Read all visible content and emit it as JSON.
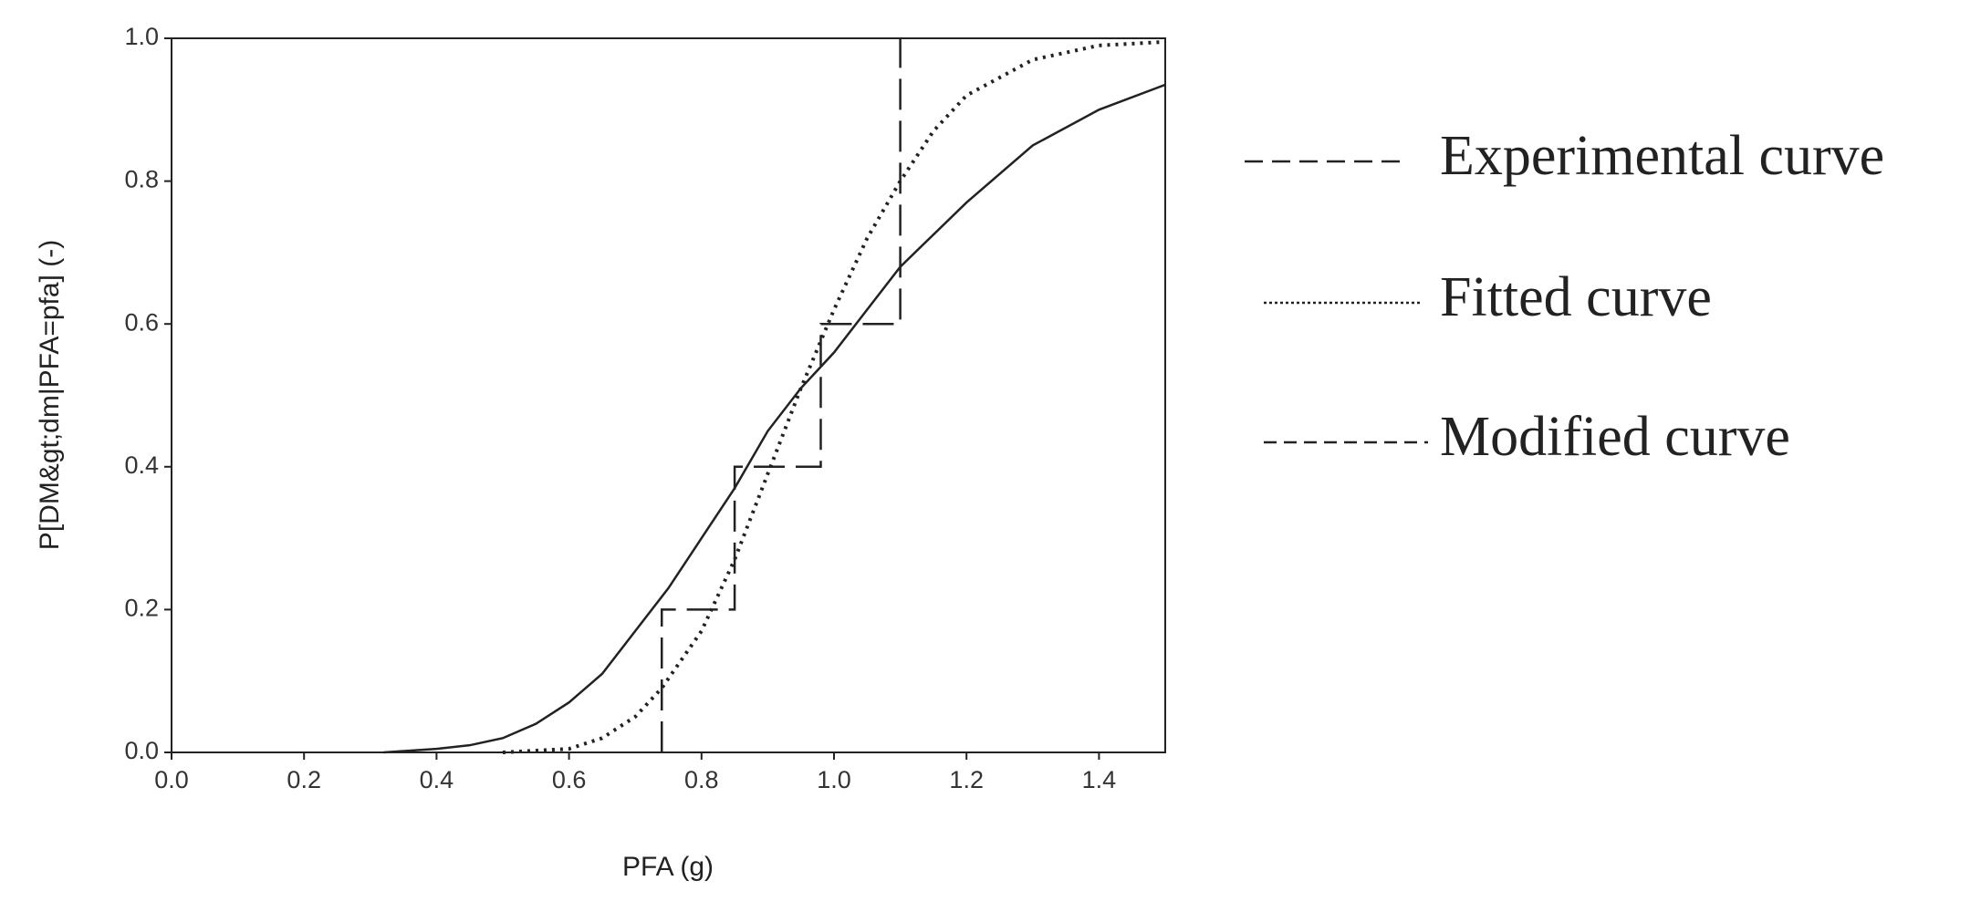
{
  "chart_data": {
    "type": "line",
    "xlabel": "PFA (g)",
    "ylabel": "P[DM&gt;dm|PFA=pfa] (-)",
    "xlim": [
      0,
      1.5
    ],
    "ylim": [
      0,
      1
    ],
    "xticks": [
      {
        "value": 0,
        "label": "0.0"
      },
      0.2,
      0.4,
      0.6,
      0.8,
      {
        "value": 1,
        "label": "1.0"
      },
      1.2,
      1.4
    ],
    "yticks": [
      {
        "value": 0,
        "label": "0.0"
      },
      0.2,
      0.4,
      0.6,
      0.8,
      {
        "value": 1,
        "label": "1.0"
      }
    ],
    "series": [
      {
        "name": "Experimental curve",
        "color": "#222222",
        "x": [
          0.74,
          0.74,
          0.85,
          0.85,
          0.98,
          0.98,
          1.1,
          1.1
        ],
        "values": [
          0,
          0.2,
          0.2,
          0.4,
          0.4,
          0.6,
          0.6,
          1.0
        ]
      },
      {
        "name": "Fitted curve",
        "color": "#222222",
        "x": [
          0.5,
          0.6,
          0.65,
          0.7,
          0.74,
          0.8,
          0.85,
          0.9,
          0.95,
          1.0,
          1.05,
          1.1,
          1.15,
          1.2,
          1.3,
          1.4,
          1.5
        ],
        "values": [
          0,
          0.005,
          0.02,
          0.05,
          0.09,
          0.17,
          0.27,
          0.39,
          0.51,
          0.62,
          0.72,
          0.8,
          0.87,
          0.92,
          0.97,
          0.99,
          0.995
        ]
      },
      {
        "name": "Modified curve",
        "color": "#222222",
        "x": [
          0.32,
          0.4,
          0.45,
          0.5,
          0.55,
          0.6,
          0.65,
          0.7,
          0.75,
          0.8,
          0.85,
          0.9,
          0.95,
          1.0,
          1.05,
          1.1,
          1.2,
          1.3,
          1.4,
          1.5
        ],
        "values": [
          0,
          0.005,
          0.01,
          0.02,
          0.04,
          0.07,
          0.11,
          0.17,
          0.23,
          0.3,
          0.37,
          0.45,
          0.51,
          0.56,
          0.62,
          0.68,
          0.77,
          0.85,
          0.9,
          0.935
        ]
      }
    ]
  }
}
